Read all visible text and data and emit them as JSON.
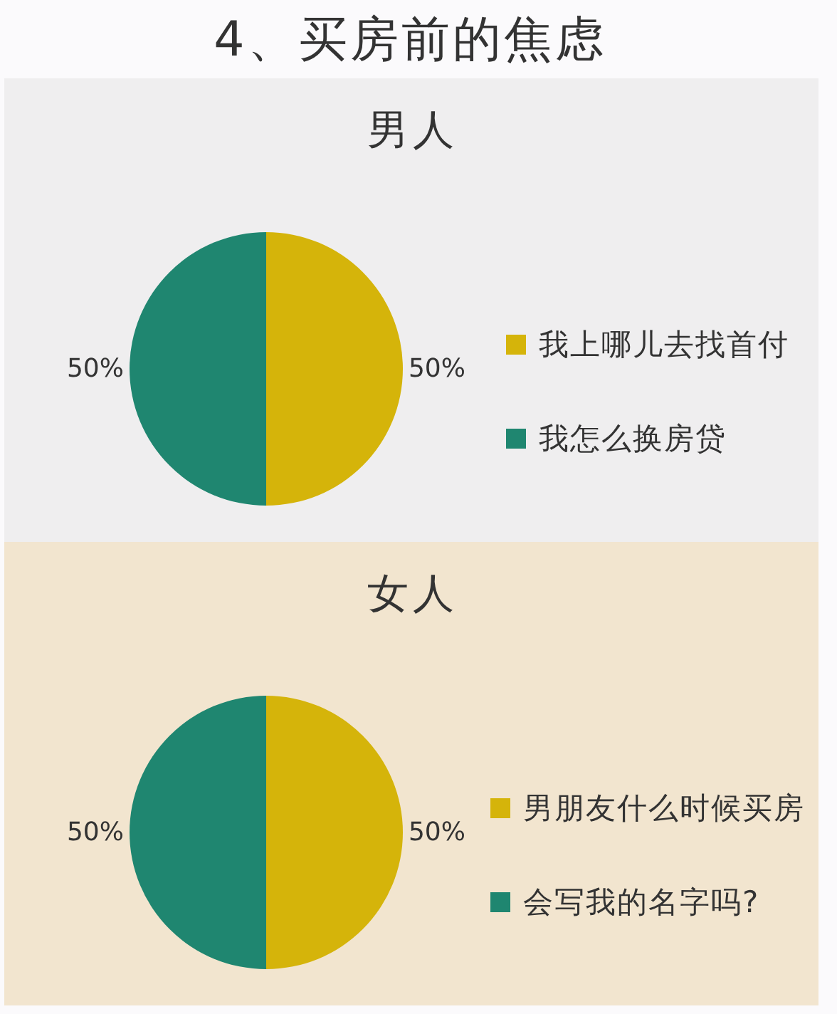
{
  "chart_data": [
    {
      "type": "other",
      "title": "4、买房前的焦虑"
    },
    {
      "type": "pie",
      "title": "男人",
      "categories": [
        "我上哪儿去找首付",
        "我怎么换房贷"
      ],
      "values": [
        50,
        50
      ],
      "colors": [
        "#d5b40a",
        "#1f8670"
      ],
      "value_labels": [
        "50%",
        "50%"
      ],
      "legend": "right"
    },
    {
      "type": "pie",
      "title": "女人",
      "categories": [
        "男朋友什么时候买房",
        "会写我的名字吗?"
      ],
      "values": [
        50,
        50
      ],
      "colors": [
        "#d5b40a",
        "#1f8670"
      ],
      "value_labels": [
        "50%",
        "50%"
      ],
      "legend": "right"
    }
  ]
}
